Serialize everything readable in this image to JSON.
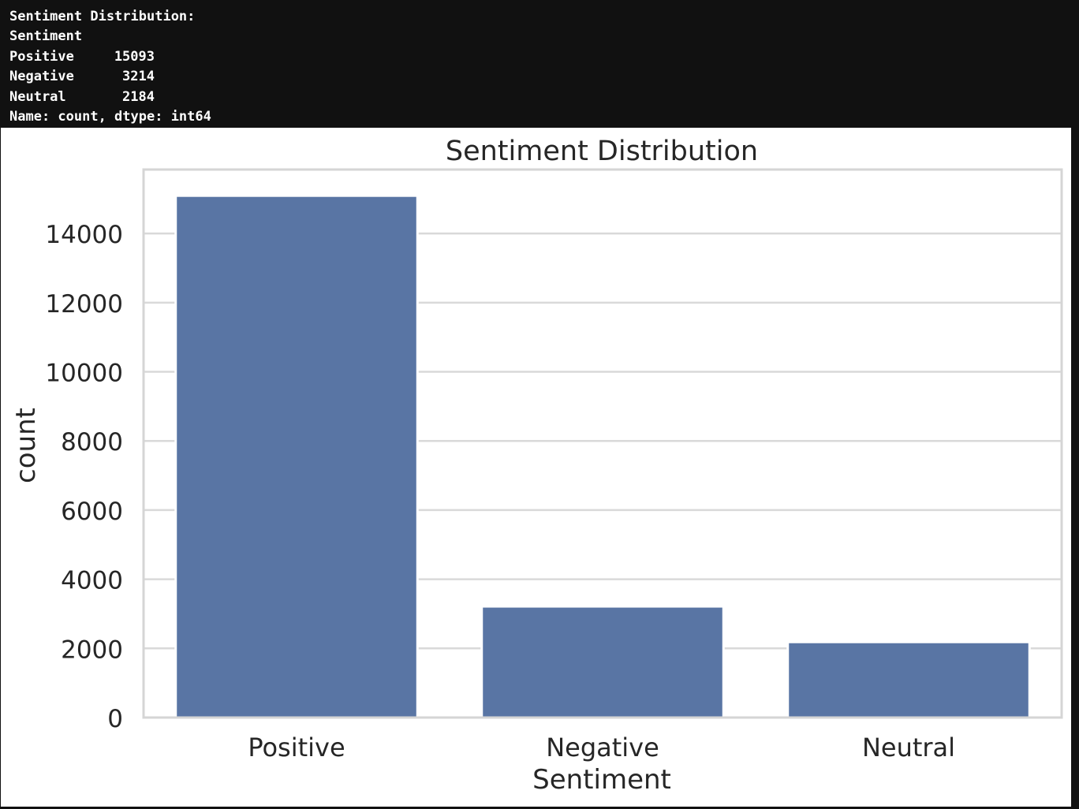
{
  "console": {
    "line_title": "Sentiment Distribution:",
    "line_index_name": "Sentiment",
    "rows": [
      {
        "label": "Positive",
        "value": "15093"
      },
      {
        "label": "Negative",
        "value": "3214"
      },
      {
        "label": "Neutral",
        "value": "2184"
      }
    ],
    "line_footer": "Name: count, dtype: int64"
  },
  "chart_data": {
    "type": "bar",
    "title": "Sentiment Distribution",
    "xlabel": "Sentiment",
    "ylabel": "count",
    "categories": [
      "Positive",
      "Negative",
      "Neutral"
    ],
    "values": [
      15093,
      3214,
      2184
    ],
    "ylim": [
      0,
      15850
    ],
    "yticks": [
      0,
      2000,
      4000,
      6000,
      8000,
      10000,
      12000,
      14000
    ],
    "grid": true,
    "bar_color": "#5975a4",
    "grid_color": "#d9d9d9",
    "frame_color": "#d5d5d5"
  }
}
